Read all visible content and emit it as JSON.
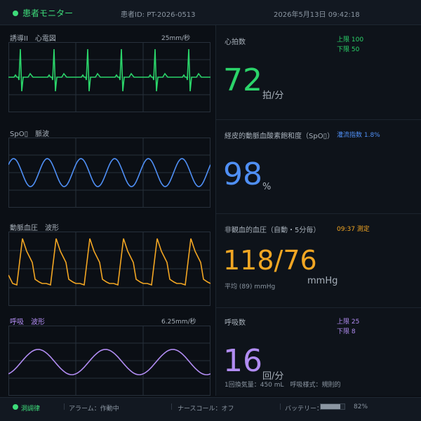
{
  "header": {
    "title": "患者モニター",
    "patient_id": "患者ID: PT-2026-0513",
    "datetime": "2026年5月13日  09:42:18"
  },
  "waves": {
    "ecg": {
      "label": "誘導II　心電図",
      "speed": "25mm/秒",
      "color": "#2bd46a"
    },
    "spo2": {
      "label": "SpO▯　脈波",
      "color": "#4f8ff5"
    },
    "abp": {
      "label": "動脈血圧　波形",
      "color": "#f2a623"
    },
    "resp": {
      "label": "呼吸　波形",
      "speed": "6.25mm/秒",
      "color": "#b18cf2"
    }
  },
  "heart_rate": {
    "label": "心拍数",
    "value": "72",
    "unit": "拍/分",
    "upper": "上限 100",
    "lower": "下限  50",
    "color": "#2bd46a"
  },
  "spo2": {
    "label": "経皮的動脈血酸素飽和度（SpO▯）",
    "perfusion": "灌流指数 1.8%",
    "value": "98",
    "unit": "%",
    "color": "#4f8ff5"
  },
  "nibp": {
    "label": "非観血的血圧（自動・5分毎）",
    "measured": "09:37 測定",
    "value": "118/76",
    "mean": "平均 (89)  mmHg",
    "unit": "mmHg",
    "color": "#f2a623"
  },
  "resp": {
    "label": "呼吸数",
    "upper": "上限 25",
    "lower": "下限  8",
    "value": "16",
    "unit": "回/分",
    "detail": "1回換気量：450 mL　呼吸様式：規則的",
    "color": "#b18cf2"
  },
  "footer": {
    "rhythm": "洞調律",
    "alarm": "アラーム：作動中",
    "nurse_call": "ナースコール：オフ",
    "battery_label": "バッテリー：",
    "battery_value": "82%",
    "battery_level": 0.82
  }
}
